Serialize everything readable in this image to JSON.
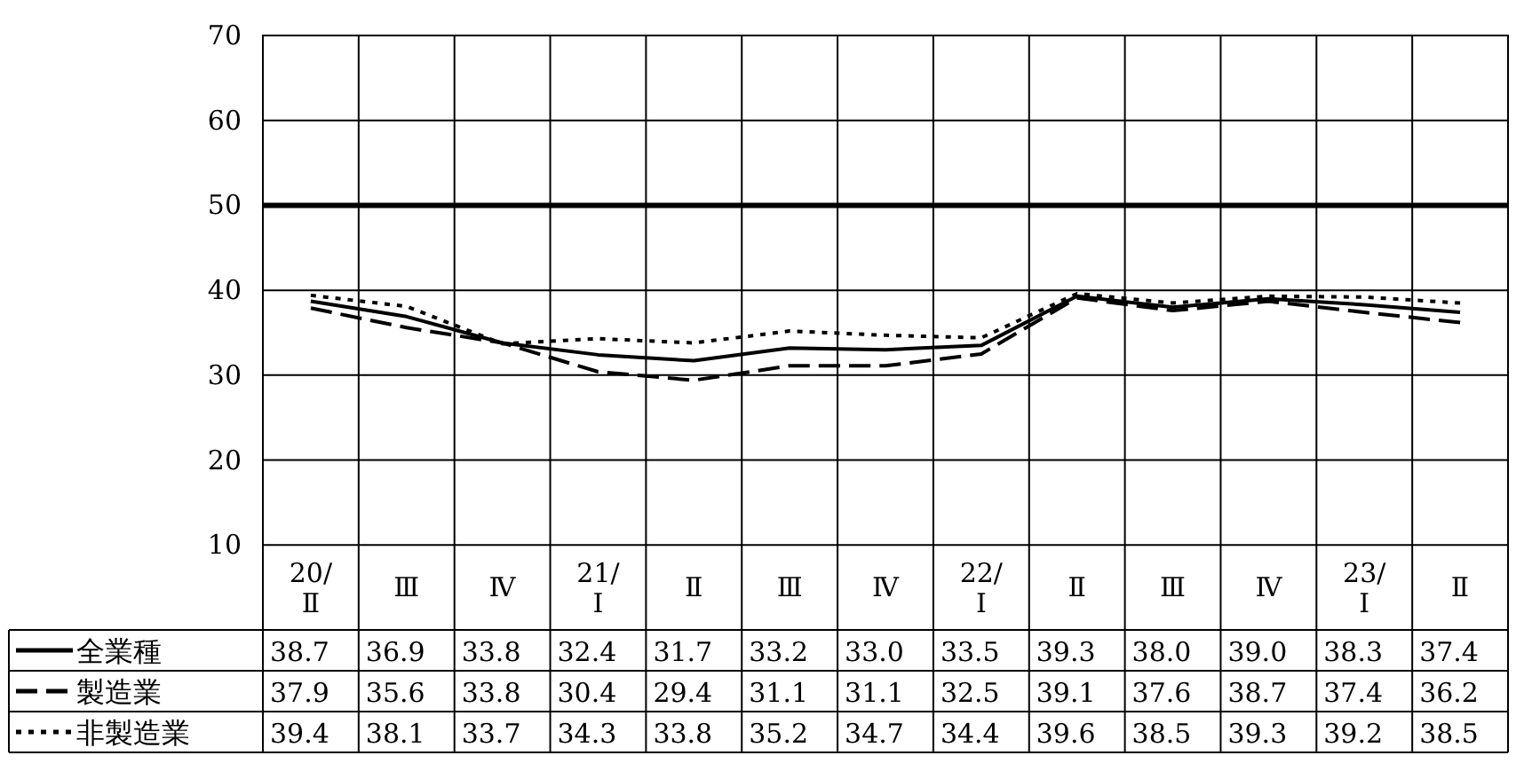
{
  "chart_data": {
    "type": "line",
    "categories": [
      "20/\nⅡ",
      "Ⅲ",
      "Ⅳ",
      "21/\nⅠ",
      "Ⅱ",
      "Ⅲ",
      "Ⅳ",
      "22/\nⅠ",
      "Ⅱ",
      "Ⅲ",
      "Ⅳ",
      "23/\nⅠ",
      "Ⅱ"
    ],
    "series": [
      {
        "name": "全業種",
        "color": "#000000",
        "line_style": "solid",
        "values": [
          38.7,
          36.9,
          33.8,
          32.4,
          31.7,
          33.2,
          33.0,
          33.5,
          39.3,
          38.0,
          39.0,
          38.3,
          37.4
        ],
        "value_labels": [
          "38.7",
          "36.9",
          "33.8",
          "32.4",
          "31.7",
          "33.2",
          "33.0",
          "33.5",
          "39.3",
          "38.0",
          "39.0",
          "38.3",
          "37.4"
        ]
      },
      {
        "name": "製造業",
        "color": "#000000",
        "line_style": "dashed",
        "values": [
          37.9,
          35.6,
          33.8,
          30.4,
          29.4,
          31.1,
          31.1,
          32.5,
          39.1,
          37.6,
          38.7,
          37.4,
          36.2
        ],
        "value_labels": [
          "37.9",
          "35.6",
          "33.8",
          "30.4",
          "29.4",
          "31.1",
          "31.1",
          "32.5",
          "39.1",
          "37.6",
          "38.7",
          "37.4",
          "36.2"
        ]
      },
      {
        "name": "非製造業",
        "color": "#000000",
        "line_style": "dotted",
        "values": [
          39.4,
          38.1,
          33.7,
          34.3,
          33.8,
          35.2,
          34.7,
          34.4,
          39.6,
          38.5,
          39.3,
          39.2,
          38.5
        ],
        "value_labels": [
          "39.4",
          "38.1",
          "33.7",
          "34.3",
          "33.8",
          "35.2",
          "34.7",
          "34.4",
          "39.6",
          "38.5",
          "39.3",
          "39.2",
          "38.5"
        ]
      }
    ],
    "ylim": [
      0,
      70
    ],
    "yticks": [
      10,
      20,
      30,
      40,
      50,
      60,
      70
    ],
    "ref_lines": [
      {
        "axis": "y",
        "value": 50,
        "color": "#000000"
      }
    ],
    "grid": true,
    "legend": "bottom left"
  }
}
